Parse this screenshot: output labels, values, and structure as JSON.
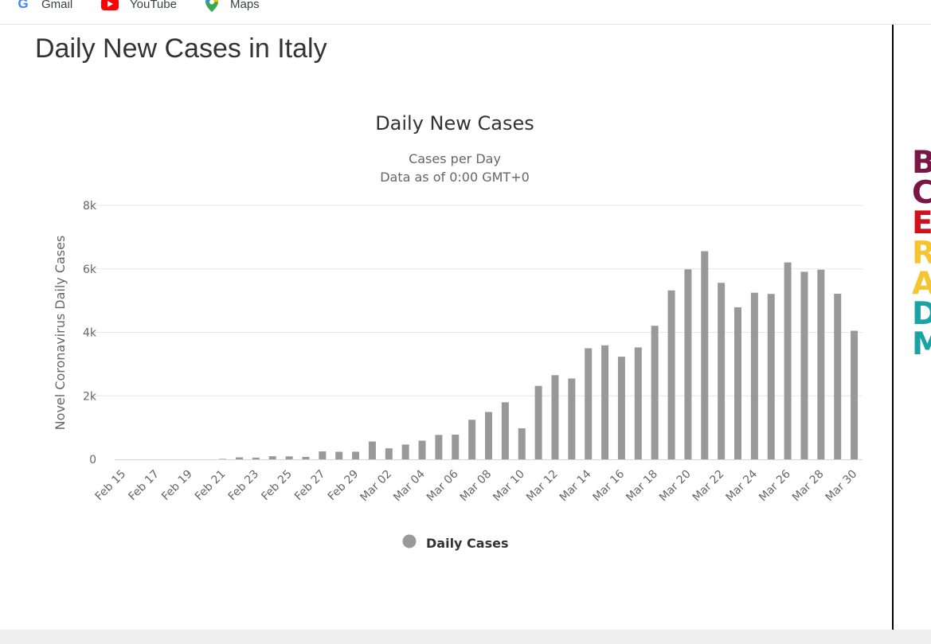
{
  "bookmarks": [
    {
      "label": "Gmail",
      "icon": "google-icon"
    },
    {
      "label": "YouTube",
      "icon": "youtube-icon"
    },
    {
      "label": "Maps",
      "icon": "maps-icon"
    }
  ],
  "page": {
    "title": "Daily New Cases in Italy"
  },
  "side_letters": [
    {
      "char": "B",
      "color": "#7a1645"
    },
    {
      "char": "C",
      "color": "#7a1645"
    },
    {
      "char": "E",
      "color": "#d0111b"
    },
    {
      "char": "R",
      "color": "#f5c531"
    },
    {
      "char": "A",
      "color": "#f5c531"
    },
    {
      "char": "D",
      "color": "#1aa3a3"
    },
    {
      "char": "M",
      "color": "#1aa3a3"
    }
  ],
  "chart_data": {
    "type": "bar",
    "title": "Daily New Cases",
    "subtitle_lines": [
      "Cases per Day",
      "Data as of 0:00 GMT+0"
    ],
    "ylabel": "Novel Coronavirus Daily Cases",
    "xlabel": "",
    "ylim": [
      0,
      8000
    ],
    "yticks": [
      0,
      2000,
      4000,
      6000,
      8000
    ],
    "ytick_labels": [
      "0",
      "2k",
      "4k",
      "6k",
      "8k"
    ],
    "grid": true,
    "legend": "bottom-center",
    "bar_color": "#999999",
    "categories": [
      "Feb 15",
      "Feb 16",
      "Feb 17",
      "Feb 18",
      "Feb 19",
      "Feb 20",
      "Feb 21",
      "Feb 22",
      "Feb 23",
      "Feb 24",
      "Feb 25",
      "Feb 26",
      "Feb 27",
      "Feb 28",
      "Feb 29",
      "Mar 01",
      "Mar 02",
      "Mar 03",
      "Mar 04",
      "Mar 05",
      "Mar 06",
      "Mar 07",
      "Mar 08",
      "Mar 09",
      "Mar 10",
      "Mar 11",
      "Mar 12",
      "Mar 13",
      "Mar 14",
      "Mar 15",
      "Mar 16",
      "Mar 17",
      "Mar 18",
      "Mar 19",
      "Mar 20",
      "Mar 21",
      "Mar 22",
      "Mar 23",
      "Mar 24",
      "Mar 25",
      "Mar 26",
      "Mar 27",
      "Mar 28",
      "Mar 29",
      "Mar 30"
    ],
    "tick_labels": [
      "Feb 15",
      "Feb 17",
      "Feb 19",
      "Feb 21",
      "Feb 23",
      "Feb 25",
      "Feb 27",
      "Feb 29",
      "Mar 02",
      "Mar 04",
      "Mar 06",
      "Mar 08",
      "Mar 10",
      "Mar 12",
      "Mar 14",
      "Mar 16",
      "Mar 18",
      "Mar 20",
      "Mar 22",
      "Mar 24",
      "Mar 26",
      "Mar 28",
      "Mar 30"
    ],
    "series": [
      {
        "name": "Daily Cases",
        "values": [
          0,
          0,
          0,
          0,
          0,
          0,
          14,
          62,
          53,
          97,
          93,
          78,
          250,
          238,
          240,
          561,
          347,
          466,
          587,
          769,
          778,
          1247,
          1492,
          1797,
          977,
          2313,
          2651,
          2547,
          3497,
          3590,
          3233,
          3526,
          4207,
          5322,
          5986,
          6557,
          5560,
          4789,
          5249,
          5210,
          6203,
          5909,
          5974,
          5217,
          4050
        ]
      }
    ]
  }
}
